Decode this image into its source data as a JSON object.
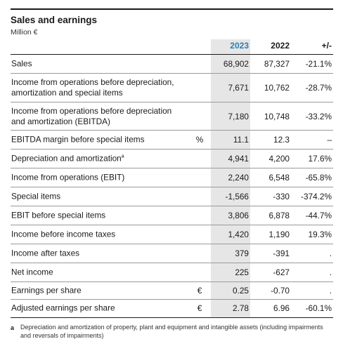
{
  "title": "Sales and earnings",
  "subtitle": "Million €",
  "columns": {
    "y2023": "2023",
    "y2022": "2022",
    "change": "+/-"
  },
  "colors": {
    "accent_2023": "#2a7fb8",
    "shade_2023": "#e6e6e6"
  },
  "rows": [
    {
      "label": "Sales",
      "unit": "",
      "v2023": "68,902",
      "v2022": "87,327",
      "change": "-21.1%"
    },
    {
      "label": "Income from operations before depreciation, amortization and special items",
      "unit": "",
      "v2023": "7,671",
      "v2022": "10,762",
      "change": "-28.7%"
    },
    {
      "label": "Income from operations before depreciation and amortization (EBITDA)",
      "unit": "",
      "v2023": "7,180",
      "v2022": "10,748",
      "change": "-33.2%"
    },
    {
      "label": "EBITDA margin before special items",
      "unit": "%",
      "v2023": "11.1",
      "v2022": "12.3",
      "change": "–"
    },
    {
      "label": "Depreciation and amortization",
      "footnote_ref": "a",
      "unit": "",
      "v2023": "4,941",
      "v2022": "4,200",
      "change": "17.6%"
    },
    {
      "label": "Income from operations (EBIT)",
      "unit": "",
      "v2023": "2,240",
      "v2022": "6,548",
      "change": "-65.8%"
    },
    {
      "label": "Special items",
      "unit": "",
      "v2023": "-1,566",
      "v2022": "-330",
      "change": "-374.2%"
    },
    {
      "label": "EBIT before special items",
      "unit": "",
      "v2023": "3,806",
      "v2022": "6,878",
      "change": "-44.7%"
    },
    {
      "label": "Income before income taxes",
      "unit": "",
      "v2023": "1,420",
      "v2022": "1,190",
      "change": "19.3%"
    },
    {
      "label": "Income after taxes",
      "unit": "",
      "v2023": "379",
      "v2022": "-391",
      "change": "."
    },
    {
      "label": "Net income",
      "unit": "",
      "v2023": "225",
      "v2022": "-627",
      "change": "."
    },
    {
      "label": "Earnings per share",
      "unit": "€",
      "v2023": "0.25",
      "v2022": "-0.70",
      "change": "."
    },
    {
      "label": "Adjusted earnings per share",
      "unit": "€",
      "v2023": "2.78",
      "v2022": "6.96",
      "change": "-60.1%"
    }
  ],
  "footnote": {
    "mark": "a",
    "text": "Depreciation and amortization of property, plant and equipment and intangible assets (including impairments and reversals of impairments)"
  }
}
